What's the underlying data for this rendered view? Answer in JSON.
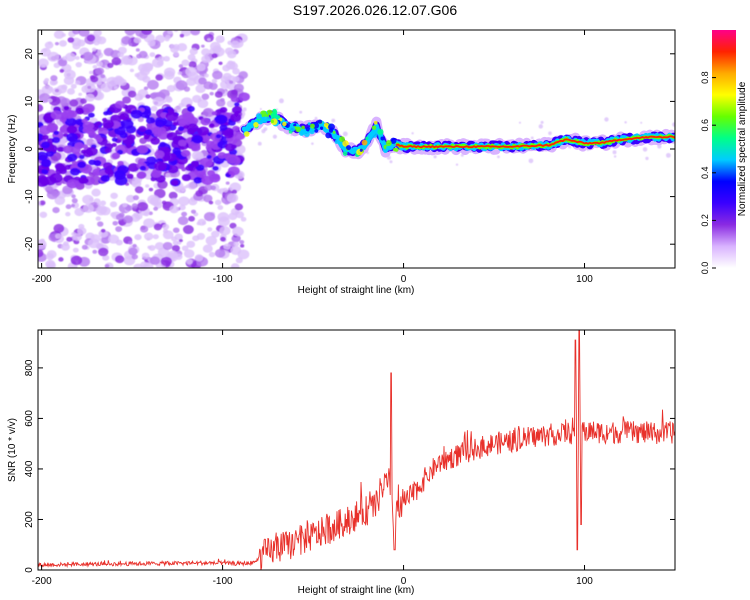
{
  "figure": {
    "title": "S197.2026.026.12.07.G06"
  },
  "chart_data": [
    {
      "type": "heatmap",
      "title": "S197.2026.026.12.07.G06",
      "xlabel": "Height of straight line (km)",
      "ylabel": "Frequency (Hz)",
      "xlim": [
        -202,
        150
      ],
      "ylim": [
        -25,
        25
      ],
      "xticks": [
        -200,
        -100,
        0,
        100
      ],
      "yticks": [
        -20,
        -10,
        0,
        10,
        20
      ],
      "colorbar": {
        "label": "Normalized spectral amplitude",
        "range": [
          0,
          1
        ],
        "ticks": [
          0.0,
          0.2,
          0.4,
          0.6,
          0.8
        ],
        "tick_labels": [
          "0.0",
          "0.2",
          "0.4",
          "0.6",
          "0.8"
        ],
        "colormap": [
          "#ffffff",
          "#d9b3ff",
          "#8a2be2",
          "#3a00ff",
          "#0000ff",
          "#00ccff",
          "#00ff88",
          "#66ff00",
          "#ffff00",
          "#ffaa00",
          "#ff2200",
          "#ff0088"
        ]
      },
      "ridge": {
        "description": "dominant frequency track",
        "points": [
          [
            -200,
            1
          ],
          [
            -180,
            0.5
          ],
          [
            -160,
            1.5
          ],
          [
            -140,
            0.5
          ],
          [
            -120,
            1
          ],
          [
            -100,
            1
          ],
          [
            -88,
            4
          ],
          [
            -80,
            6
          ],
          [
            -72,
            7
          ],
          [
            -65,
            5
          ],
          [
            -55,
            4
          ],
          [
            -45,
            5
          ],
          [
            -38,
            3
          ],
          [
            -32,
            0
          ],
          [
            -25,
            -0.5
          ],
          [
            -20,
            1.5
          ],
          [
            -15,
            5
          ],
          [
            -10,
            0
          ],
          [
            -5,
            1
          ],
          [
            0,
            0.5
          ],
          [
            20,
            0.5
          ],
          [
            40,
            0.5
          ],
          [
            60,
            0.5
          ],
          [
            80,
            0.8
          ],
          [
            90,
            2
          ],
          [
            100,
            1.2
          ],
          [
            110,
            1.3
          ],
          [
            120,
            2
          ],
          [
            135,
            2.5
          ],
          [
            150,
            2.5
          ]
        ]
      }
    },
    {
      "type": "line",
      "xlabel": "Height of straight line (km)",
      "ylabel": "SNR (10 * v/v)",
      "xlim": [
        -202,
        150
      ],
      "ylim": [
        0,
        950
      ],
      "xticks": [
        -200,
        -100,
        0,
        100
      ],
      "yticks": [
        0,
        200,
        400,
        600,
        800
      ],
      "series": [
        {
          "name": "SNR",
          "color": "#e8302a",
          "envelope": {
            "x": [
              -202,
              -150,
              -110,
              -90,
              -82,
              -78,
              -70,
              -60,
              -50,
              -40,
              -30,
              -22,
              -15,
              -12,
              -8,
              -6,
              -4,
              0,
              5,
              10,
              15,
              20,
              30,
              40,
              50,
              60,
              70,
              80,
              90,
              95,
              100,
              110,
              120,
              130,
              140,
              150
            ],
            "y": [
              20,
              25,
              28,
              25,
              30,
              60,
              85,
              105,
              135,
              165,
              200,
              230,
              255,
              330,
              350,
              200,
              260,
              260,
              300,
              345,
              390,
              425,
              455,
              480,
              500,
              510,
              525,
              535,
              540,
              545,
              550,
              545,
              545,
              545,
              540,
              545
            ]
          },
          "noise": [
            -30,
            30
          ],
          "spikes": [
            {
              "x": -7,
              "y": 780
            },
            {
              "x": -5,
              "y": 80
            },
            {
              "x": 95,
              "y": 910
            },
            {
              "x": 96,
              "y": 80
            },
            {
              "x": 97,
              "y": 950
            },
            {
              "x": 98,
              "y": 180
            }
          ]
        }
      ]
    }
  ]
}
